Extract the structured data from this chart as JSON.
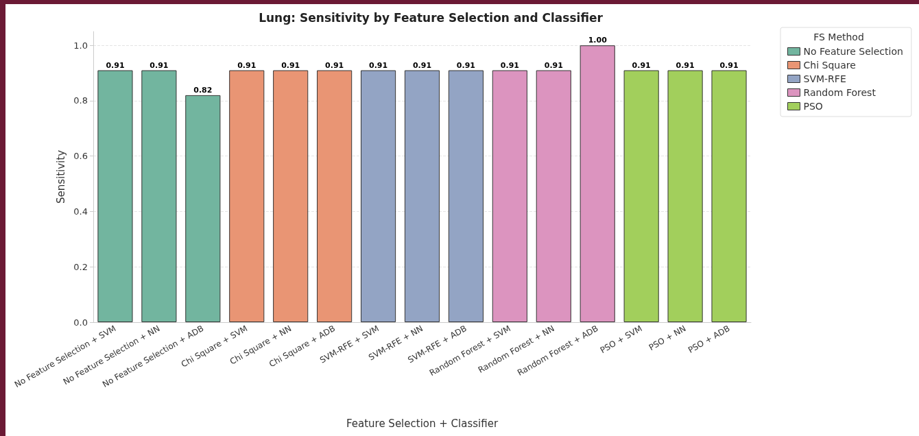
{
  "chart_data": {
    "type": "bar",
    "title": "Lung: Sensitivity by Feature Selection and Classifier",
    "xlabel": "Feature Selection + Classifier",
    "ylabel": "Sensitivity",
    "legend_title": "FS Method",
    "legend": "top right",
    "grid": "y",
    "categories": [
      "No Feature Selection + SVM",
      "No Feature Selection + NN",
      "No Feature Selection + ADB",
      "Chi Square + SVM",
      "Chi Square + NN",
      "Chi Square + ADB",
      "SVM-RFE + SVM",
      "SVM-RFE + NN",
      "SVM-RFE + ADB",
      "Random Forest + SVM",
      "Random Forest + NN",
      "Random Forest + ADB",
      "PSO + SVM",
      "PSO + NN",
      "PSO + ADB"
    ],
    "ylim": [
      0,
      1.05
    ],
    "yticks": [
      {
        "value": 0,
        "label": "0.0"
      },
      0.2,
      0.4,
      0.6,
      0.8,
      {
        "value": 1,
        "label": "1.0"
      }
    ],
    "series": [
      {
        "name": "No Feature Selection",
        "color": "#72b59f",
        "values": [
          0.91,
          0.91,
          0.82,
          null,
          null,
          null,
          null,
          null,
          null,
          null,
          null,
          null,
          null,
          null,
          null
        ],
        "value_labels": [
          "0.91",
          "0.91",
          "0.82",
          null,
          null,
          null,
          null,
          null,
          null,
          null,
          null,
          null,
          null,
          null,
          null
        ]
      },
      {
        "name": "Chi Square",
        "color": "#e99574",
        "values": [
          null,
          null,
          null,
          0.91,
          0.91,
          0.91,
          null,
          null,
          null,
          null,
          null,
          null,
          null,
          null,
          null
        ],
        "value_labels": [
          null,
          null,
          null,
          "0.91",
          "0.91",
          "0.91",
          null,
          null,
          null,
          null,
          null,
          null,
          null,
          null,
          null
        ]
      },
      {
        "name": "SVM-RFE",
        "color": "#93a4c4",
        "values": [
          null,
          null,
          null,
          null,
          null,
          null,
          0.91,
          0.91,
          0.91,
          null,
          null,
          null,
          null,
          null,
          null
        ],
        "value_labels": [
          null,
          null,
          null,
          null,
          null,
          null,
          "0.91",
          "0.91",
          "0.91",
          null,
          null,
          null,
          null,
          null,
          null
        ]
      },
      {
        "name": "Random Forest",
        "color": "#dc94bf",
        "values": [
          null,
          null,
          null,
          null,
          null,
          null,
          null,
          null,
          null,
          0.91,
          0.91,
          1.0,
          null,
          null,
          null
        ],
        "value_labels": [
          null,
          null,
          null,
          null,
          null,
          null,
          null,
          null,
          null,
          "0.91",
          "0.91",
          "1.00",
          null,
          null,
          null
        ]
      },
      {
        "name": "PSO",
        "color": "#a2cf5c",
        "values": [
          null,
          null,
          null,
          null,
          null,
          null,
          null,
          null,
          null,
          null,
          null,
          null,
          0.91,
          0.91,
          0.91
        ],
        "value_labels": [
          null,
          null,
          null,
          null,
          null,
          null,
          null,
          null,
          null,
          null,
          null,
          null,
          "0.91",
          "0.91",
          "0.91"
        ]
      }
    ]
  }
}
